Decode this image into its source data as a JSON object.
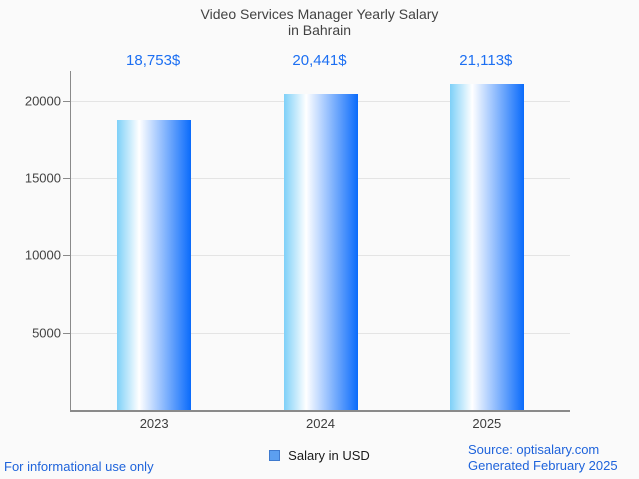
{
  "chart_data": {
    "type": "bar",
    "title": "Video Services Manager Yearly Salary in Bahrain",
    "title_lines": [
      "Video Services Manager Yearly Salary",
      "in Bahrain"
    ],
    "categories": [
      "2023",
      "2024",
      "2025"
    ],
    "series": [
      {
        "name": "Salary in USD",
        "values": [
          18753,
          20441,
          21113
        ]
      }
    ],
    "value_labels": [
      "18,753$",
      "20,441$",
      "21,113$"
    ],
    "y_ticks": [
      5000,
      10000,
      15000,
      20000
    ],
    "y_tick_labels": [
      "5000",
      "10000",
      "15000",
      "20000"
    ],
    "ylim": [
      0,
      21940
    ],
    "grid": true,
    "legend_position": "bottom",
    "bar_gradient": [
      "#7ed0f8",
      "#ffffff",
      "#0a6bfb"
    ],
    "annotation_color": "#1c6ff2",
    "axis_color": "#8a8a8a",
    "gridline_color": "#e4e4e4"
  },
  "legend": {
    "label": "Salary in USD",
    "swatch_fill": "#5c9ff0",
    "swatch_border": "#3f7ace"
  },
  "footer": {
    "note": "For informational use only",
    "source_line1": "Source: optisalary.com",
    "source_line2": "Generated February 2025",
    "link_color": "#1e63db"
  }
}
